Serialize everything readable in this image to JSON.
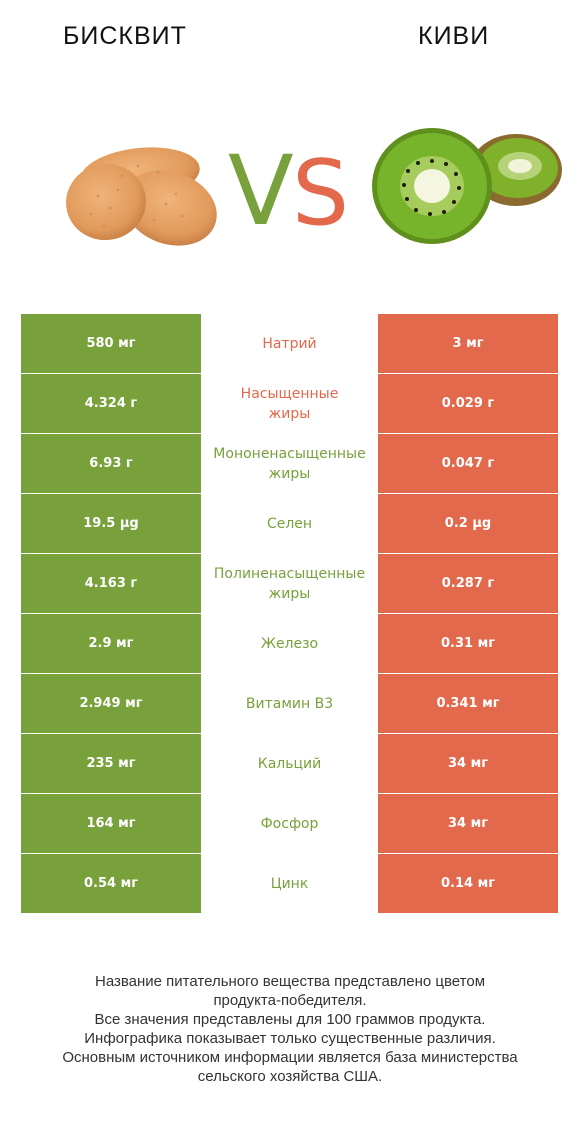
{
  "header": {
    "left_title": "БИСКВИТ",
    "right_title": "КИВИ",
    "vs_text": "VS"
  },
  "colors": {
    "left_accent": "#79a13b",
    "right_accent": "#e3694c"
  },
  "rows": [
    {
      "left": "580 мг",
      "nutrient": "Натрий",
      "right": "3 мг",
      "winner": "right"
    },
    {
      "left": "4.324 г",
      "nutrient": "Насыщенные\nжиры",
      "right": "0.029 г",
      "winner": "right"
    },
    {
      "left": "6.93 г",
      "nutrient": "Мононенасыщенные\nжиры",
      "right": "0.047 г",
      "winner": "left"
    },
    {
      "left": "19.5 µg",
      "nutrient": "Селен",
      "right": "0.2 µg",
      "winner": "left"
    },
    {
      "left": "4.163 г",
      "nutrient": "Полиненасыщенные\nжиры",
      "right": "0.287 г",
      "winner": "left"
    },
    {
      "left": "2.9 мг",
      "nutrient": "Железо",
      "right": "0.31 мг",
      "winner": "left"
    },
    {
      "left": "2.949 мг",
      "nutrient": "Витамин B3",
      "right": "0.341 мг",
      "winner": "left"
    },
    {
      "left": "235 мг",
      "nutrient": "Кальций",
      "right": "34 мг",
      "winner": "left"
    },
    {
      "left": "164 мг",
      "nutrient": "Фосфор",
      "right": "34 мг",
      "winner": "left"
    },
    {
      "left": "0.54 мг",
      "nutrient": "Цинк",
      "right": "0.14 мг",
      "winner": "left"
    }
  ],
  "footer": {
    "line1": "Название питательного вещества представлено цветом",
    "line2": "продукта-победителя.",
    "line3": "Все значения представлены для 100 граммов продукта.",
    "line4": "Инфографика показывает только существенные различия.",
    "line5": "Основным источником информации является база министерства",
    "line6": "сельского хозяйства США."
  }
}
